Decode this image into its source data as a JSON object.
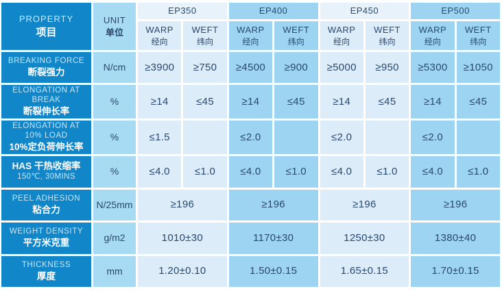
{
  "table": {
    "header": {
      "property_en": "PROPERTY",
      "property_zh": "项目",
      "unit_en": "UNIT",
      "unit_zh": "单位",
      "warp_en": "WARP",
      "warp_zh": "经向",
      "weft_en": "WEFT",
      "weft_zh": "纬向",
      "grades": [
        {
          "name": "EP350"
        },
        {
          "name": "EP400"
        },
        {
          "name": "EP450"
        },
        {
          "name": "EP500"
        }
      ]
    },
    "rows": [
      {
        "en": "BREAKING FORCE",
        "zh": "断裂强力",
        "unit": "N/cm",
        "cells": [
          "≥3900",
          "≥750",
          "≥4500",
          "≥900",
          "≥5000",
          "≥950",
          "≥5300",
          "≥1050"
        ]
      },
      {
        "en": "ELONGATION AT BREAK",
        "zh": "断裂伸长率",
        "unit": "%",
        "cells": [
          "≥14",
          "≤45",
          "≥14",
          "≤45",
          "≥14",
          "≤45",
          "≥14",
          "≤45"
        ]
      },
      {
        "en": "ELONGATION AT 10% LOAD",
        "zh": "10%定负荷伸长率",
        "unit": "%",
        "cells": [
          "≤1.5",
          "",
          "≤2.0",
          "",
          "≤2.0",
          "",
          "≤2.0",
          ""
        ]
      },
      {
        "zh": "HAS  干热收缩率",
        "en": "150℃, 30MINS",
        "unit": "%",
        "cells": [
          "≤4.0",
          "≤1.0",
          "≤4.0",
          "≤1.0",
          "≤4.0",
          "≤1.0",
          "≤4.0",
          "≤1.0"
        ]
      },
      {
        "en": "PEEL ADHESION",
        "zh": "粘合力",
        "unit": "N/25mm",
        "cells": [
          "≥196",
          "≥196",
          "≥196",
          "≥196"
        ]
      },
      {
        "en": "WEIGHT DENSITY",
        "zh": "平方米克重",
        "unit": "g/m2",
        "cells": [
          "1010±30",
          "1170±30",
          "1250±30",
          "1380±40"
        ]
      },
      {
        "en": "THICKNESS",
        "zh": "厚度",
        "unit": "mm",
        "cells": [
          "1.20±0.10",
          "1.50±0.15",
          "1.65±0.15",
          "1.70±0.15"
        ]
      }
    ],
    "colors": {
      "property_bg": "#1187ca",
      "unit_bg": "#a7daf3",
      "light_col": "#dcecf8",
      "light_band": "#e7f2fb",
      "medium_col": "#9dd4f1",
      "text_navy": "#29486e",
      "property_en_text": "#c9e6f8"
    }
  }
}
